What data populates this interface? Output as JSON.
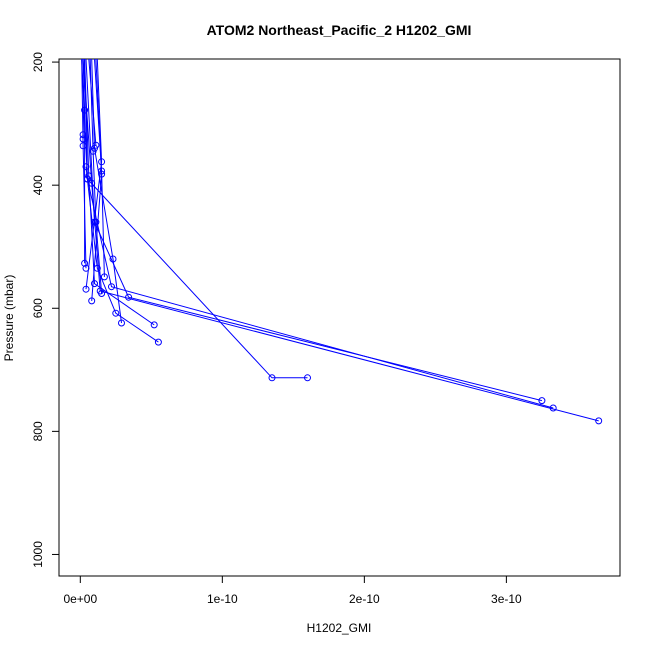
{
  "chart_data": {
    "type": "line",
    "title": "ATOM2 Northeast_Pacific_2 H1202_GMI",
    "xlabel": "H1202_GMI",
    "ylabel": "Pressure (mbar)",
    "xlim": [
      -1.5e-11,
      3.8e-10
    ],
    "ylim": [
      1035,
      195
    ],
    "y_reversed": true,
    "grid": false,
    "x_ticks": [
      {
        "value": 0,
        "label": "0e+00"
      },
      {
        "value": 1e-10,
        "label": "1e-10"
      },
      {
        "value": 2e-10,
        "label": "2e-10"
      },
      {
        "value": 3e-10,
        "label": "3e-10"
      }
    ],
    "y_ticks": [
      {
        "value": 200,
        "label": "200"
      },
      {
        "value": 400,
        "label": "400"
      },
      {
        "value": 600,
        "label": "600"
      },
      {
        "value": 800,
        "label": "800"
      },
      {
        "value": 1000,
        "label": "1000"
      }
    ],
    "color": "#0000ff",
    "series": [
      {
        "points": [
          [
            3.65e-10,
            783
          ],
          [
            1.4e-11,
            572
          ],
          [
            8e-12,
            397
          ],
          [
            2e-12,
            195
          ]
        ]
      },
      {
        "points": [
          [
            3.33e-10,
            762
          ],
          [
            2.2e-11,
            565
          ],
          [
            5e-12,
            390
          ],
          [
            3e-12,
            195
          ]
        ]
      },
      {
        "points": [
          [
            3.25e-10,
            750
          ],
          [
            3.4e-11,
            582
          ],
          [
            1e-11,
            460
          ],
          [
            4e-12,
            195
          ]
        ]
      },
      {
        "points": [
          [
            1.6e-10,
            713
          ],
          [
            1.35e-10,
            713
          ],
          [
            5e-12,
            390
          ],
          [
            1e-12,
            195
          ]
        ]
      },
      {
        "points": [
          [
            5.5e-11,
            655
          ],
          [
            2.5e-11,
            608
          ],
          [
            1.2e-11,
            535
          ],
          [
            4e-12,
            370
          ]
        ]
      },
      {
        "points": [
          [
            5.2e-11,
            627
          ],
          [
            1e-11,
            560
          ],
          [
            6e-12,
            385
          ],
          [
            3e-12,
            195
          ]
        ]
      },
      {
        "points": [
          [
            2.9e-11,
            624
          ],
          [
            2.3e-11,
            520
          ],
          [
            1e-11,
            340
          ],
          [
            8e-12,
            195
          ]
        ]
      },
      {
        "points": [
          [
            8e-12,
            588
          ],
          [
            1.5e-11,
            382
          ],
          [
            1.1e-11,
            195
          ]
        ]
      },
      {
        "points": [
          [
            1.5e-11,
            576
          ],
          [
            1.1e-11,
            460
          ],
          [
            9e-12,
            345
          ],
          [
            7e-12,
            195
          ]
        ]
      },
      {
        "points": [
          [
            4e-12,
            569
          ],
          [
            1.5e-11,
            362
          ],
          [
            1.2e-11,
            195
          ]
        ]
      },
      {
        "points": [
          [
            1.7e-11,
            549
          ],
          [
            1.5e-11,
            377
          ],
          [
            1e-11,
            195
          ]
        ]
      },
      {
        "points": [
          [
            4e-12,
            535
          ],
          [
            2e-12,
            336
          ],
          [
            1e-12,
            195
          ]
        ]
      },
      {
        "points": [
          [
            3e-12,
            527
          ],
          [
            3e-12,
            278
          ],
          [
            2e-12,
            195
          ]
        ]
      },
      {
        "points": [
          [
            1.1e-11,
            335
          ],
          [
            6e-12,
            195
          ]
        ]
      },
      {
        "points": [
          [
            2e-12,
            318
          ],
          [
            2e-12,
            325
          ],
          [
            3e-12,
            195
          ]
        ]
      }
    ]
  }
}
